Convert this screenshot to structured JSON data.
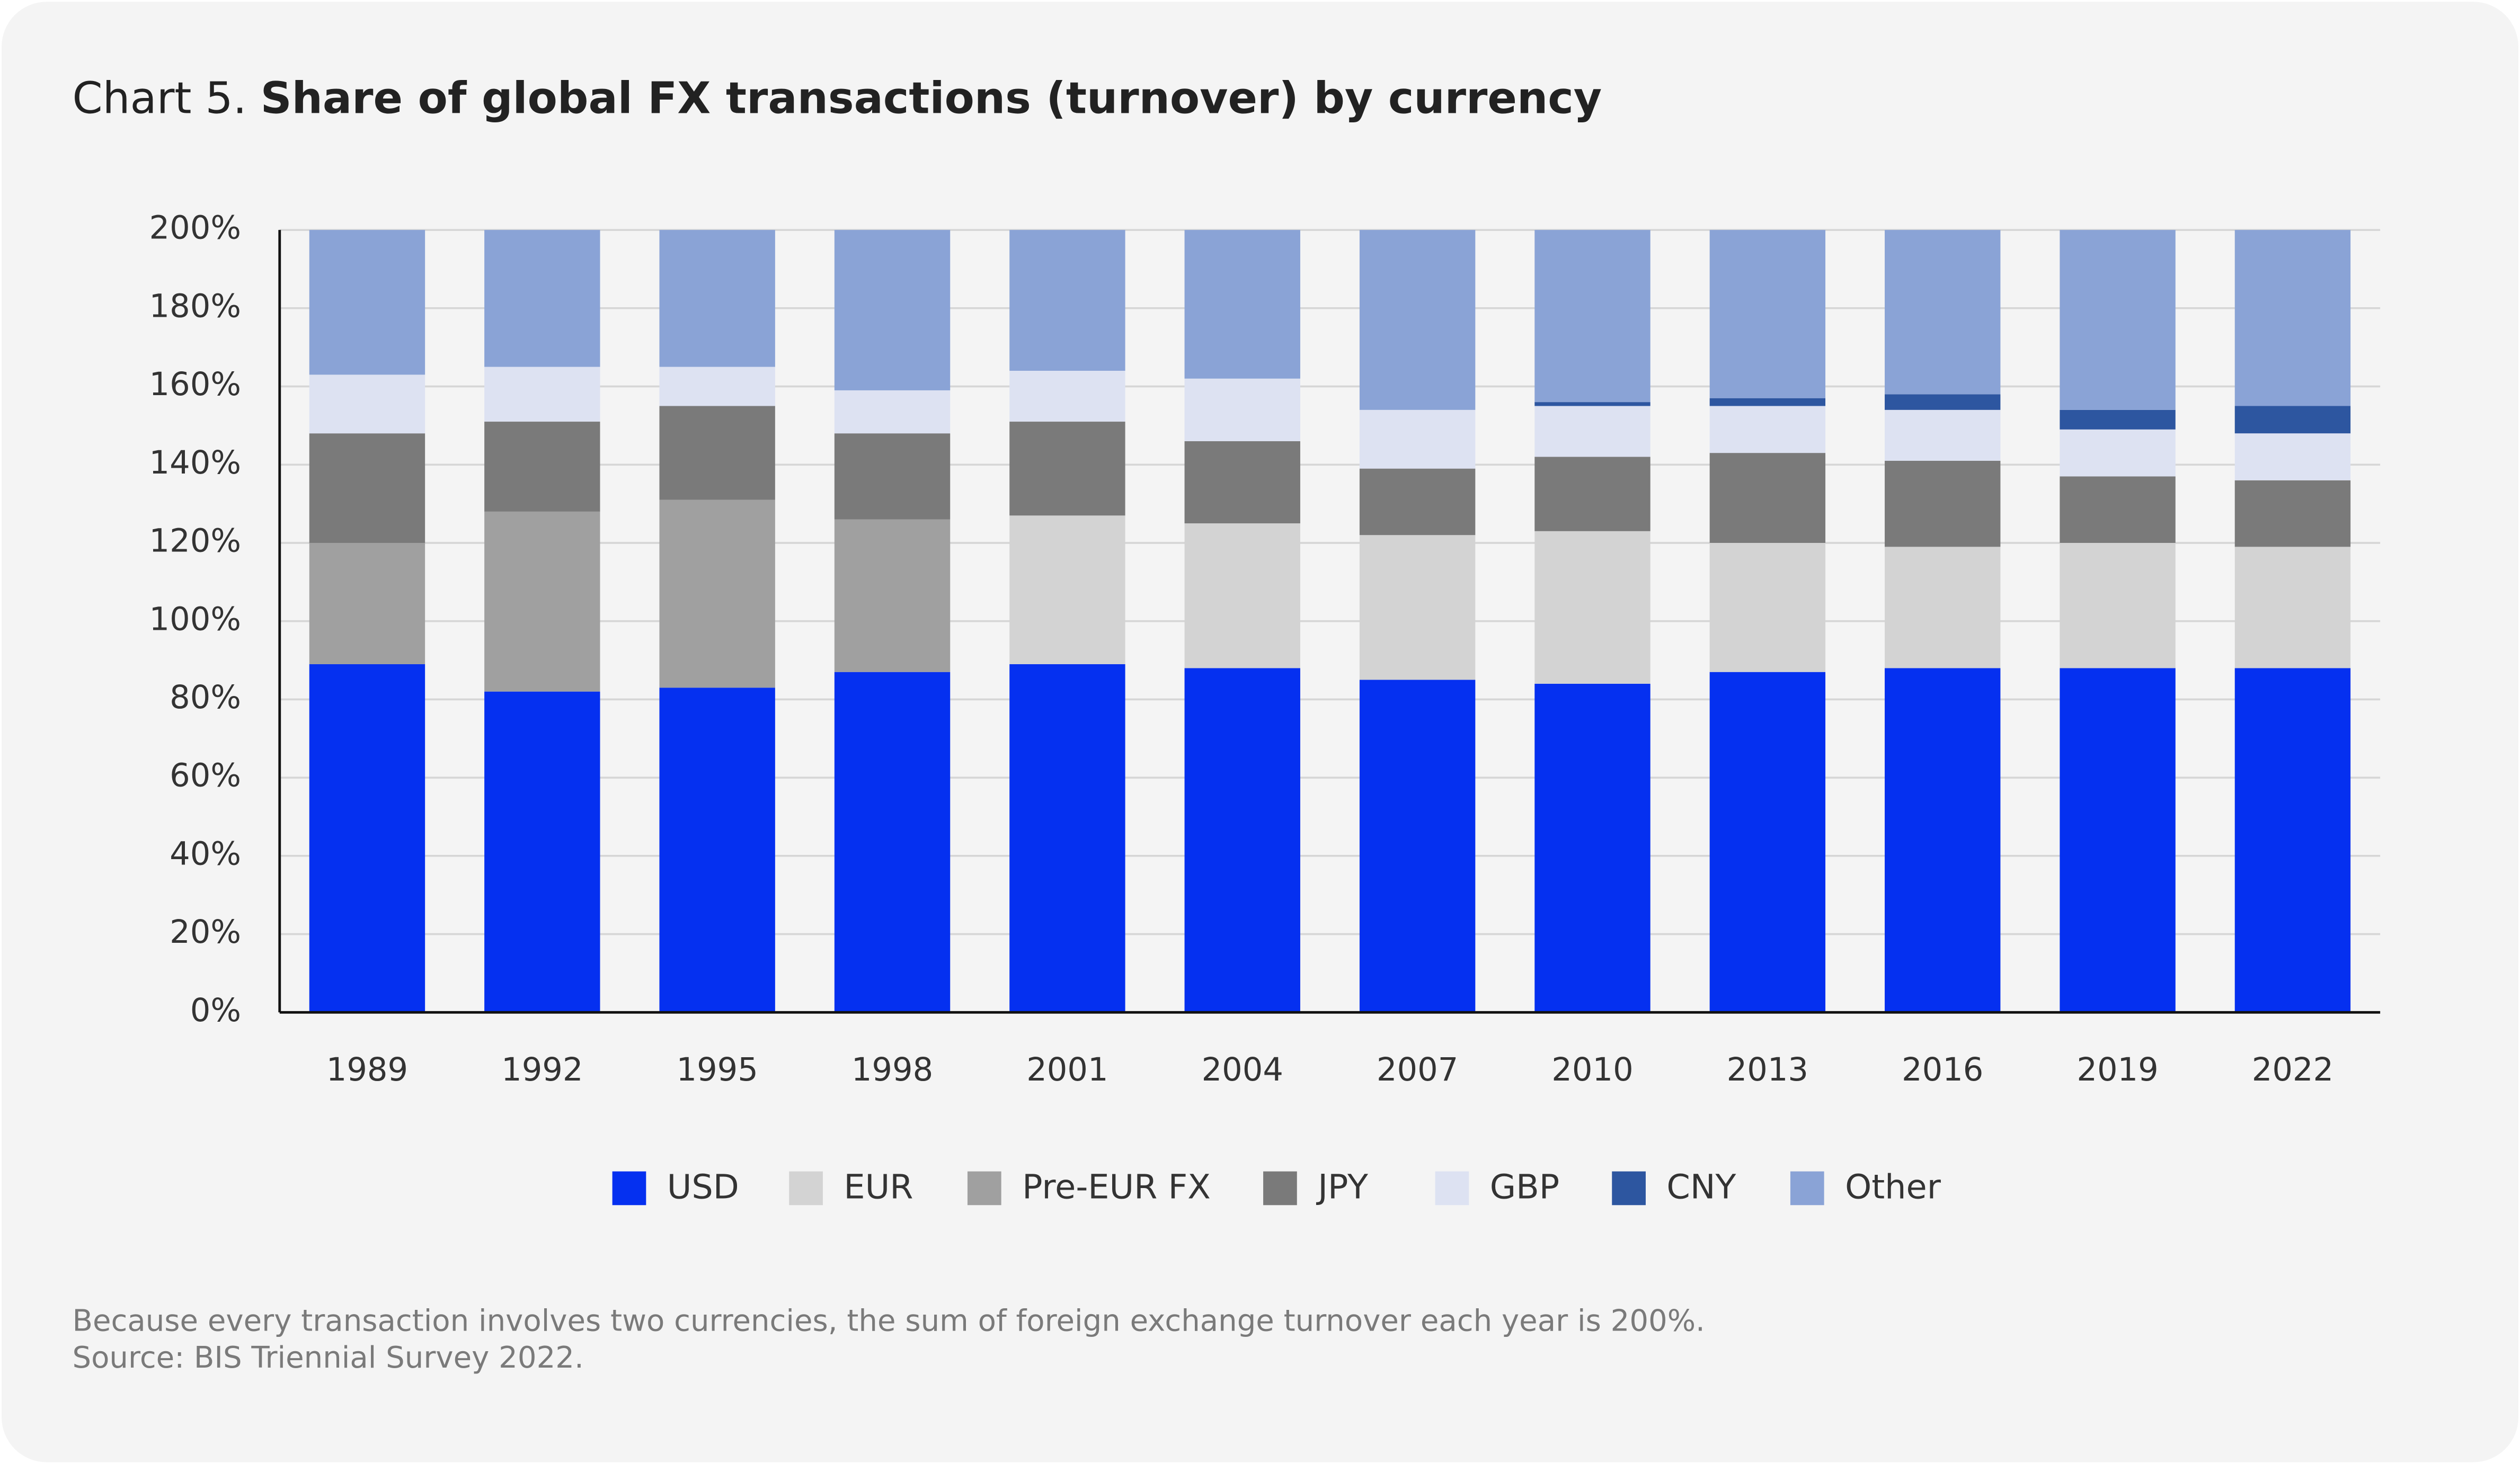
{
  "chart_data": {
    "type": "stacked-bar",
    "label": "Chart 5.",
    "title": "Share of global FX transactions (turnover) by currency",
    "notes": [
      "Because every transaction involves two currencies, the sum of foreign exchange turnover each year is 200%.",
      "Source: BIS Triennial Survey 2022."
    ],
    "categories": [
      "1989",
      "1992",
      "1995",
      "1998",
      "2001",
      "2004",
      "2007",
      "2010",
      "2013",
      "2016",
      "2019",
      "2022"
    ],
    "series": [
      {
        "name": "USD",
        "color": "#0530f0",
        "values": [
          89,
          82,
          83,
          87,
          89,
          88,
          85,
          84,
          87,
          88,
          88,
          88
        ]
      },
      {
        "name": "EUR",
        "color": "#d3d3d3",
        "values": [
          0,
          0,
          0,
          0,
          38,
          37,
          37,
          39,
          33,
          31,
          32,
          31
        ]
      },
      {
        "name": "Pre-EUR FX",
        "color": "#a0a0a0",
        "values": [
          31,
          46,
          48,
          39,
          0,
          0,
          0,
          0,
          0,
          0,
          0,
          0
        ]
      },
      {
        "name": "JPY",
        "color": "#7a7a7a",
        "values": [
          28,
          23,
          24,
          22,
          24,
          21,
          17,
          19,
          23,
          22,
          17,
          17
        ]
      },
      {
        "name": "GBP",
        "color": "#dde2f2",
        "values": [
          15,
          14,
          10,
          11,
          13,
          16,
          15,
          13,
          12,
          13,
          12,
          12
        ]
      },
      {
        "name": "CNY",
        "color": "#2d56a0",
        "values": [
          0,
          0,
          0,
          0,
          0,
          0,
          0,
          1,
          2,
          4,
          5,
          7
        ]
      },
      {
        "name": "Other",
        "color": "#8aa3d6",
        "values": [
          37,
          35,
          35,
          41,
          36,
          38,
          46,
          44,
          43,
          42,
          46,
          45
        ]
      }
    ],
    "ylim": [
      0,
      200
    ],
    "yticks": [
      {
        "value": 0,
        "label": "0%"
      },
      {
        "value": 20,
        "label": "20%"
      },
      {
        "value": 40,
        "label": "40%"
      },
      {
        "value": 60,
        "label": "60%"
      },
      {
        "value": 80,
        "label": "80%"
      },
      {
        "value": 100,
        "label": "100%"
      },
      {
        "value": 120,
        "label": "120%"
      },
      {
        "value": 140,
        "label": "140%"
      },
      {
        "value": 160,
        "label": "160%"
      },
      {
        "value": 180,
        "label": "180%"
      },
      {
        "value": 200,
        "label": "200%"
      }
    ],
    "grid": true
  }
}
